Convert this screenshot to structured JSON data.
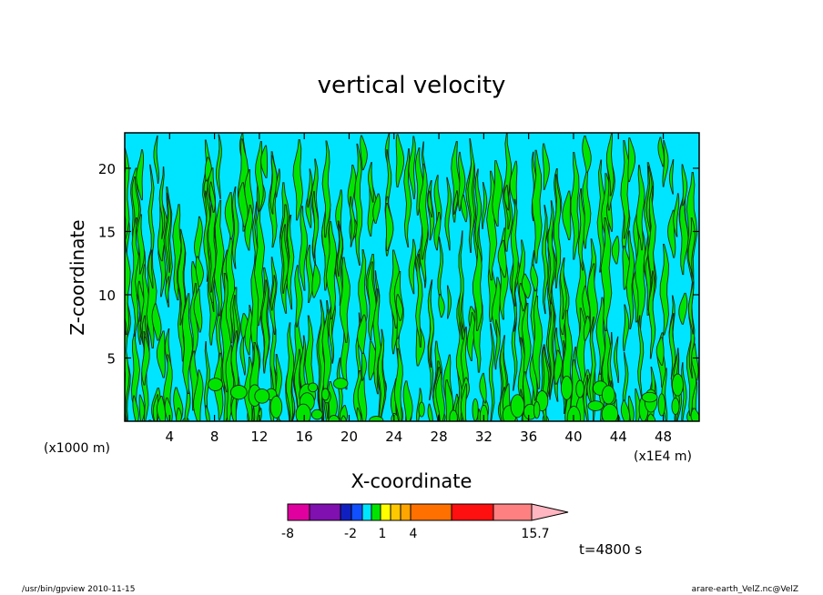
{
  "chart_data": {
    "type": "heatmap",
    "title": "vertical velocity",
    "xlabel": "X-coordinate",
    "ylabel": "Z-coordinate",
    "x_unit": "(x1E4 m)",
    "z_unit": "(x1000 m)",
    "xlim": [
      0,
      51.2
    ],
    "ylim": [
      0,
      22.8
    ],
    "x_ticks": [
      "4",
      "8",
      "12",
      "16",
      "20",
      "24",
      "28",
      "32",
      "36",
      "40",
      "44",
      "48"
    ],
    "y_ticks": [
      "5",
      "10",
      "15",
      "20"
    ],
    "field": "vertical velocity contours, values predominantly between -1 and 1",
    "fill_classes": [
      {
        "range": [
          -1,
          0
        ],
        "color": "#00e5ff"
      },
      {
        "range": [
          0,
          1
        ],
        "color": "#00e400"
      }
    ],
    "colorbar": {
      "segments": [
        "#e000a0",
        "#8010b0",
        "#1020c0",
        "#1050ff",
        "#00e5ff",
        "#00e400",
        "#ffff00",
        "#ffc800",
        "#ffa500",
        "#ff7000",
        "#ff1010",
        "#ff8080",
        "#ffb6c1"
      ],
      "labels": [
        "-8",
        "-2",
        "1",
        "4",
        "15.7"
      ]
    },
    "time_label": "t=4800 s"
  },
  "footer": {
    "left": "/usr/bin/gpview   2010-11-15",
    "right": "arare-earth_VelZ.nc@VelZ"
  }
}
